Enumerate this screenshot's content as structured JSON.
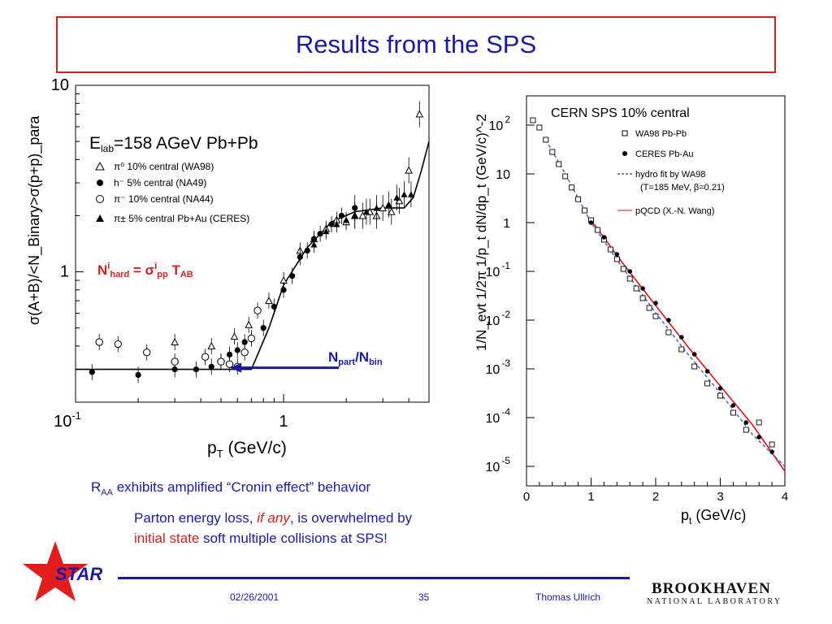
{
  "slide": {
    "title": "Results from the SPS",
    "caption1": {
      "main": "R",
      "sub": "AA",
      "rest": " exhibits amplified “Cronin effect” behavior"
    },
    "caption2": {
      "part1": "Parton energy loss, ",
      "ital": "if any",
      "part2": ", is overwhelmed  by"
    },
    "caption3": {
      "red": "initial state",
      "rest": " soft multiple collisions at SPS!"
    },
    "footer": {
      "date": "02/26/2001",
      "page": "35",
      "author": "Thomas Ullrich"
    },
    "logo_star": "STAR",
    "logo_bnl": "BROOKHAVEN",
    "logo_bnl_sub": "NATIONAL LABORATORY",
    "colors": {
      "title": "#1a1aa6",
      "accent": "#d21f1f",
      "text": "#1a1aa6"
    }
  },
  "chart_data": [
    {
      "type": "scatter",
      "ylabel": "σ(A+B)/<N_Binary>σ(p+p)_para",
      "xlabel_main": "p",
      "xlabel_sub": "T",
      "xlabel_rest": " (GeV/c)",
      "x_scale": "log",
      "y_scale": "log",
      "xlim": [
        0.1,
        5
      ],
      "ylim": [
        0.2,
        10
      ],
      "x_ticks": [
        {
          "v": 0.1,
          "base": "10",
          "exp": "-1"
        },
        {
          "v": 1,
          "base": "1",
          "exp": ""
        }
      ],
      "y_ticks": [
        {
          "v": 1,
          "label": "1"
        },
        {
          "v": 10,
          "label": "10"
        }
      ],
      "header": {
        "main": "E",
        "sub": "lab",
        "rest": "=158 AGeV Pb+Pb"
      },
      "annotation": {
        "n": "N",
        "sup": "i",
        "sub": "hard",
        "eq": " = σ",
        "sup2": "i",
        "sub2": "pp",
        "t": " T",
        "sub3": "AB"
      },
      "arrow_label": {
        "n": "N",
        "sub1": "part",
        "slash": "/N",
        "sub2": "bin"
      },
      "arrow": {
        "from": 0.75,
        "to": 0.3,
        "y": 0.3
      },
      "series": [
        {
          "name": "π⁰ 10% central (WA98)",
          "marker": "triangle-open",
          "points": [
            [
              0.3,
              0.42
            ],
            [
              0.45,
              0.4
            ],
            [
              0.58,
              0.45
            ],
            [
              0.68,
              0.52
            ],
            [
              0.85,
              0.7
            ],
            [
              1.0,
              0.9
            ],
            [
              1.2,
              1.3
            ],
            [
              1.4,
              1.5
            ],
            [
              1.6,
              1.7
            ],
            [
              1.8,
              1.9
            ],
            [
              2.0,
              1.85
            ],
            [
              2.2,
              2.0
            ],
            [
              2.4,
              2.0
            ],
            [
              2.6,
              2.1
            ],
            [
              2.8,
              2.0
            ],
            [
              3.0,
              2.2
            ],
            [
              3.3,
              2.1
            ],
            [
              3.6,
              2.4
            ],
            [
              4.0,
              3.5
            ],
            [
              4.5,
              7.0
            ]
          ]
        },
        {
          "name": "h⁻ 5% central (NA49)",
          "marker": "circle-filled",
          "points": [
            [
              0.12,
              0.29
            ],
            [
              0.2,
              0.28
            ],
            [
              0.3,
              0.3
            ],
            [
              0.38,
              0.3
            ],
            [
              0.45,
              0.31
            ],
            [
              0.5,
              0.33
            ],
            [
              0.55,
              0.36
            ],
            [
              0.6,
              0.38
            ],
            [
              0.65,
              0.42
            ],
            [
              0.7,
              0.44
            ],
            [
              0.8,
              0.5
            ],
            [
              0.9,
              0.65
            ],
            [
              1.0,
              0.8
            ],
            [
              1.1,
              0.95
            ],
            [
              1.2,
              1.2
            ],
            [
              1.3,
              1.3
            ],
            [
              1.4,
              1.5
            ],
            [
              1.5,
              1.6
            ],
            [
              1.7,
              1.8
            ],
            [
              1.9,
              2.0
            ],
            [
              2.2,
              2.2
            ]
          ]
        },
        {
          "name": "π⁻ 10% central (NA44)",
          "marker": "circle-open",
          "points": [
            [
              0.13,
              0.42
            ],
            [
              0.16,
              0.41
            ],
            [
              0.22,
              0.37
            ],
            [
              0.3,
              0.33
            ],
            [
              0.42,
              0.35
            ],
            [
              0.5,
              0.33
            ],
            [
              0.55,
              0.32
            ],
            [
              0.6,
              0.31
            ],
            [
              0.65,
              0.37
            ],
            [
              0.7,
              0.44
            ],
            [
              0.75,
              0.62
            ]
          ]
        },
        {
          "name": "π± 5% central Pb+Au (CERES)",
          "marker": "triangle-filled",
          "points": [
            [
              1.4,
              1.4
            ],
            [
              1.6,
              1.65
            ],
            [
              1.8,
              1.8
            ],
            [
              2.0,
              1.9
            ],
            [
              2.2,
              2.0
            ],
            [
              2.5,
              2.1
            ],
            [
              2.8,
              2.2
            ],
            [
              3.2,
              2.3
            ],
            [
              3.5,
              2.5
            ],
            [
              3.8,
              2.6
            ],
            [
              4.1,
              2.6
            ]
          ]
        }
      ],
      "curve": [
        [
          0.1,
          0.3
        ],
        [
          0.7,
          0.3
        ],
        [
          0.85,
          0.5
        ],
        [
          1.0,
          0.85
        ],
        [
          1.3,
          1.35
        ],
        [
          1.7,
          1.85
        ],
        [
          2.2,
          2.1
        ],
        [
          3.0,
          2.2
        ],
        [
          3.8,
          2.2
        ],
        [
          4.2,
          2.5
        ],
        [
          4.6,
          3.5
        ],
        [
          5.0,
          5.0
        ]
      ],
      "colors": {
        "markers": "#000000",
        "curve": "#000000",
        "annotation": "#d21f1f",
        "arrow": "#1a1aa6"
      }
    },
    {
      "type": "scatter",
      "title": "CERN SPS   10% central",
      "ylabel": "1/N_evt 1/2π 1/p_t dN/dp_t (GeV/c)^-2",
      "xlabel_main": "p",
      "xlabel_sub": "t",
      "xlabel_rest": " (GeV/c)",
      "y_scale": "log",
      "xlim": [
        0,
        4
      ],
      "ylim_exp": [
        -5.4,
        2.6
      ],
      "x_ticks": [
        0,
        1,
        2,
        3,
        4
      ],
      "y_ticks": [
        {
          "e": 2,
          "exp": "2"
        },
        {
          "e": 1,
          "exp": ""
        },
        {
          "e": 0,
          "exp": ""
        },
        {
          "e": -1,
          "exp": "-1"
        },
        {
          "e": -2,
          "exp": "-2"
        },
        {
          "e": -3,
          "exp": "-3"
        },
        {
          "e": -4,
          "exp": "-4"
        },
        {
          "e": -5,
          "exp": "-5"
        }
      ],
      "legend": [
        "WA98  Pb-Pb",
        "CERES Pb-Au",
        "hydro fit by WA98",
        "(T=185 MeV, β=0.21)",
        "pQCD (X.-N. Wang)"
      ],
      "series": [
        {
          "name": "WA98  Pb-Pb",
          "marker": "square-open",
          "points": [
            [
              0.1,
              2.1
            ],
            [
              0.2,
              1.95
            ],
            [
              0.3,
              1.7
            ],
            [
              0.4,
              1.45
            ],
            [
              0.5,
              1.2
            ],
            [
              0.6,
              0.95
            ],
            [
              0.7,
              0.72
            ],
            [
              0.8,
              0.48
            ],
            [
              0.9,
              0.25
            ],
            [
              1.0,
              0.05
            ],
            [
              1.1,
              -0.15
            ],
            [
              1.2,
              -0.35
            ],
            [
              1.3,
              -0.55
            ],
            [
              1.4,
              -0.75
            ],
            [
              1.5,
              -0.95
            ],
            [
              1.6,
              -1.15
            ],
            [
              1.7,
              -1.35
            ],
            [
              1.8,
              -1.55
            ],
            [
              1.9,
              -1.75
            ],
            [
              2.0,
              -1.92
            ],
            [
              2.2,
              -2.25
            ],
            [
              2.4,
              -2.6
            ],
            [
              2.6,
              -2.95
            ],
            [
              2.8,
              -3.3
            ],
            [
              3.0,
              -3.55
            ],
            [
              3.2,
              -3.9
            ],
            [
              3.4,
              -4.25
            ],
            [
              3.6,
              -4.1
            ],
            [
              3.8,
              -4.55
            ]
          ]
        },
        {
          "name": "CERES Pb-Au",
          "marker": "circle-filled",
          "points": [
            [
              1.0,
              0.0
            ],
            [
              1.2,
              -0.3
            ],
            [
              1.4,
              -0.65
            ],
            [
              1.6,
              -1.0
            ],
            [
              1.8,
              -1.35
            ],
            [
              2.0,
              -1.65
            ],
            [
              2.2,
              -2.0
            ],
            [
              2.4,
              -2.35
            ],
            [
              2.6,
              -2.7
            ],
            [
              2.8,
              -3.05
            ],
            [
              3.0,
              -3.4
            ],
            [
              3.2,
              -3.75
            ],
            [
              3.4,
              -4.1
            ],
            [
              3.6,
              -4.4
            ],
            [
              3.8,
              -4.7
            ]
          ]
        }
      ],
      "hydro": [
        [
          0.3,
          1.7
        ],
        [
          0.6,
          1.0
        ],
        [
          1.0,
          0.0
        ],
        [
          1.5,
          -0.95
        ],
        [
          2.0,
          -1.85
        ],
        [
          2.5,
          -2.7
        ],
        [
          3.0,
          -3.5
        ],
        [
          3.5,
          -4.35
        ],
        [
          4.0,
          -5.0
        ]
      ],
      "pqcd": [
        [
          1.0,
          0.05
        ],
        [
          1.5,
          -0.85
        ],
        [
          2.0,
          -1.7
        ],
        [
          2.5,
          -2.55
        ],
        [
          3.0,
          -3.35
        ],
        [
          3.5,
          -4.15
        ],
        [
          4.0,
          -5.1
        ]
      ],
      "colors": {
        "hydro": "#3a5fcd",
        "pqcd": "#e01010",
        "markers": "#000000"
      }
    }
  ]
}
